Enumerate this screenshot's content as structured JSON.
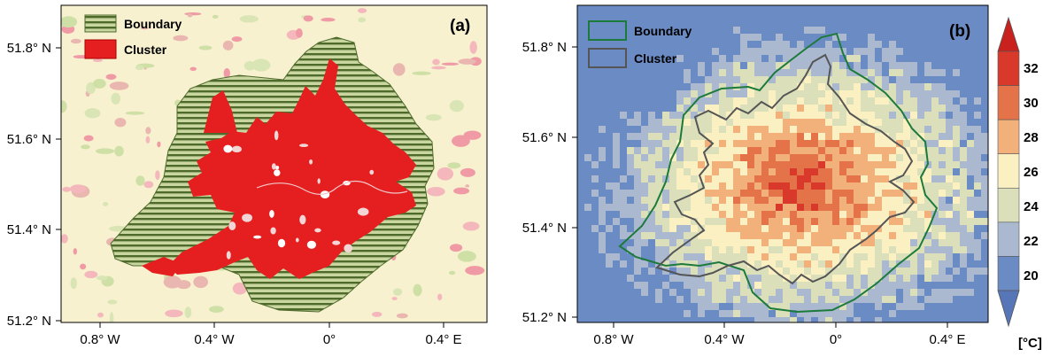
{
  "panel_a": {
    "label": "(a)",
    "legend": [
      {
        "label": "Boundary",
        "fill": "#c9d6a0",
        "stripe": "#4f6b2c"
      },
      {
        "label": "Cluster",
        "fill": "#e51f1f"
      }
    ],
    "y_ticks": [
      "51.8° N",
      "51.6° N",
      "51.4° N",
      "51.2° N"
    ],
    "x_ticks": [
      "0.8° W",
      "0.4° W",
      "0°",
      "0.4° E"
    ],
    "colors": {
      "background": "#f7f1cf",
      "urban": "#e51f1f",
      "boundary_stripe": "#4f6b2c"
    }
  },
  "panel_b": {
    "label": "(b)",
    "legend": [
      {
        "label": "Boundary",
        "stroke": "#1c7a3a"
      },
      {
        "label": "Cluster",
        "stroke": "#555555"
      }
    ],
    "y_ticks": [
      "51.8° N",
      "51.6° N",
      "51.4° N",
      "51.2° N"
    ],
    "x_ticks": [
      "0.8° W",
      "0.4° W",
      "0°",
      "0.4° E"
    ]
  },
  "colorbar": {
    "labels": [
      "32",
      "30",
      "28",
      "26",
      "24",
      "22",
      "20"
    ],
    "unit": "[°C]",
    "colors": [
      "#d8392b",
      "#e5734a",
      "#f2b07a",
      "#fbf0c2",
      "#dbe0bb",
      "#aab9cf",
      "#6b8bc4"
    ]
  }
}
